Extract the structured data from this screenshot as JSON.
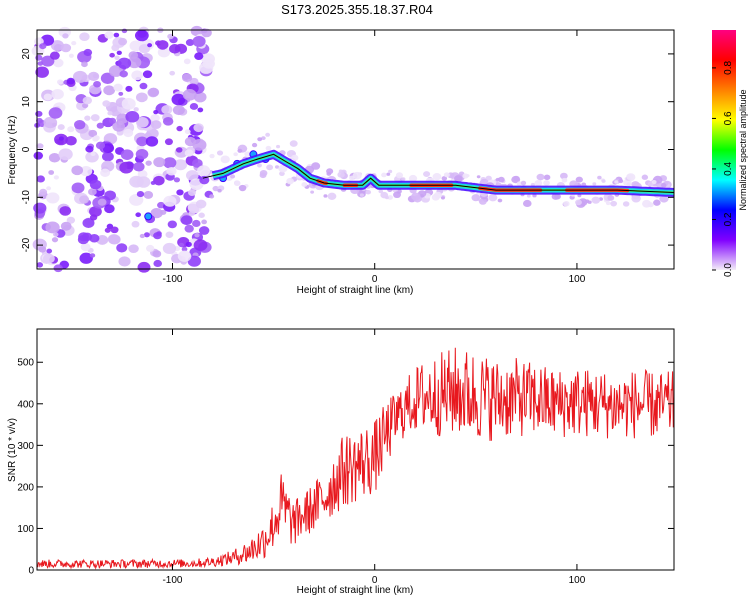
{
  "title": "S173.2025.355.18.37.R04",
  "chart_data": [
    {
      "type": "heatmap",
      "name": "spectrogram",
      "xlabel": "Height of straight line (km)",
      "ylabel": "Frequency (Hz)",
      "xlim": [
        -167,
        148
      ],
      "ylim": [
        -25,
        25
      ],
      "xticks": [
        -100,
        0,
        100
      ],
      "xtick_labels": [
        "-100",
        "0",
        "100"
      ],
      "yticks": [
        -20,
        -10,
        0,
        10,
        20
      ],
      "ytick_labels": [
        "-20",
        "-10",
        "0",
        "10",
        "20"
      ],
      "trend_line": {
        "x": [
          -85,
          -75,
          -65,
          -58,
          -50,
          -44,
          -38,
          -32,
          -25,
          -15,
          -6,
          -2,
          2,
          10,
          20,
          40,
          60,
          90,
          120,
          148
        ],
        "y": [
          -6,
          -5,
          -3,
          -2,
          -1,
          -2.5,
          -4,
          -6,
          -7,
          -7.5,
          -7.5,
          -6,
          -7.5,
          -7.5,
          -7.5,
          -7.5,
          -8.5,
          -8.5,
          -8.5,
          -9
        ]
      },
      "colorbar": {
        "label": "Normalized spectral amplitude",
        "ticks": [
          0.0,
          0.2,
          0.4,
          0.6,
          0.8
        ],
        "tick_labels": [
          "0.0",
          "0.2",
          "0.4",
          "0.6",
          "0.8"
        ],
        "range": [
          0,
          0.95
        ],
        "colors": [
          "#f4eef8",
          "#8000ff",
          "#0000ff",
          "#00ffff",
          "#00ff00",
          "#ffff00",
          "#ff8000",
          "#ff0000",
          "#ff0080"
        ]
      }
    },
    {
      "type": "line",
      "name": "snr",
      "xlabel": "Height of straight line (km)",
      "ylabel": "SNR (10 * v/v)",
      "xlim": [
        -167,
        148
      ],
      "ylim": [
        0,
        580
      ],
      "xticks": [
        -100,
        0,
        100
      ],
      "xtick_labels": [
        "-100",
        "0",
        "100"
      ],
      "yticks": [
        0,
        100,
        200,
        300,
        400,
        500
      ],
      "ytick_labels": [
        "0",
        "100",
        "200",
        "300",
        "400",
        "500"
      ],
      "color": "#e8181e",
      "envelope": {
        "x": [
          -167,
          -120,
          -90,
          -80,
          -70,
          -62,
          -55,
          -50,
          -46,
          -43,
          -40,
          -36,
          -30,
          -25,
          -20,
          -15,
          -10,
          -5,
          0,
          5,
          10,
          15,
          20,
          25,
          30,
          40,
          50,
          60,
          70,
          80,
          90,
          100,
          110,
          120,
          130,
          140,
          148
        ],
        "mid": [
          15,
          15,
          16,
          20,
          30,
          45,
          70,
          110,
          160,
          130,
          110,
          130,
          150,
          175,
          210,
          240,
          250,
          260,
          270,
          320,
          360,
          390,
          410,
          420,
          420,
          430,
          420,
          410,
          415,
          410,
          400,
          405,
          400,
          395,
          400,
          395,
          400
        ],
        "amp": [
          10,
          10,
          10,
          12,
          18,
          30,
          45,
          60,
          80,
          70,
          55,
          55,
          60,
          70,
          80,
          90,
          90,
          90,
          90,
          80,
          70,
          70,
          80,
          90,
          100,
          110,
          110,
          100,
          95,
          90,
          85,
          85,
          85,
          80,
          85,
          80,
          80
        ]
      }
    }
  ]
}
